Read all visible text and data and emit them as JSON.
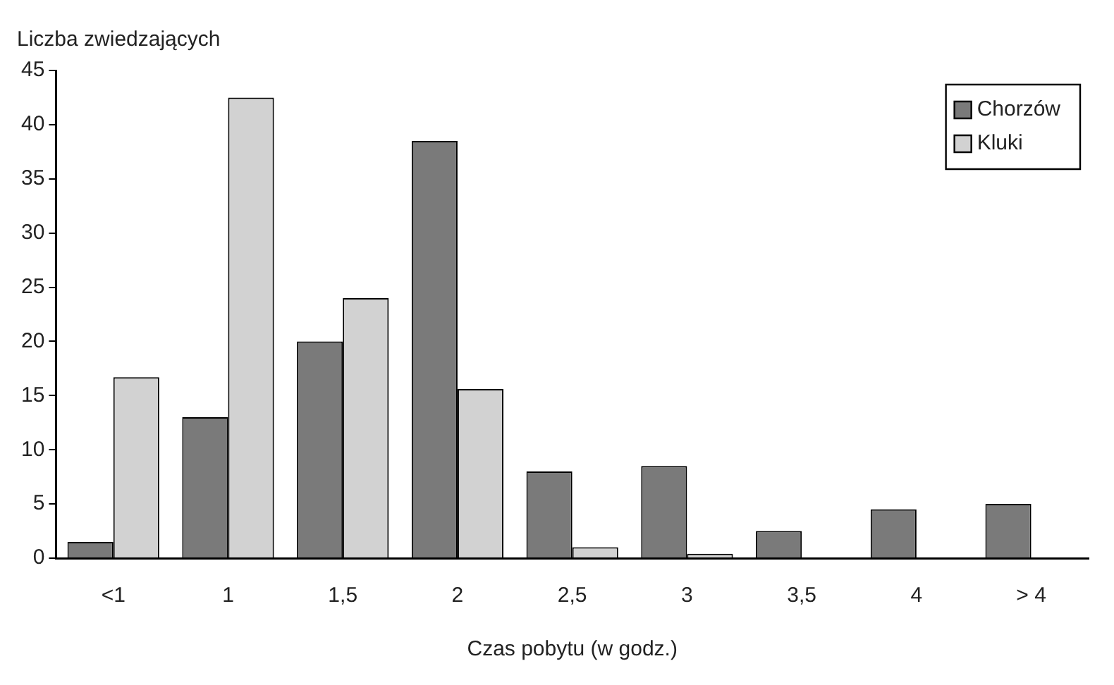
{
  "chart_data": {
    "type": "bar",
    "ylabel": "Liczba zwiedzających",
    "xlabel": "Czas pobytu (w godz.)",
    "categories": [
      "<1",
      "1",
      "1,5",
      "2",
      "2,5",
      "3",
      "3,5",
      "4",
      "> 4"
    ],
    "series": [
      {
        "name": "Chorzów",
        "color": "#7a7a7a",
        "values": [
          1.5,
          13,
          20,
          38.5,
          8,
          8.5,
          2.5,
          4.5,
          5
        ]
      },
      {
        "name": "Kluki",
        "color": "#d2d2d2",
        "values": [
          16.7,
          42.5,
          24,
          15.6,
          1,
          0.4,
          0,
          0,
          0
        ]
      }
    ],
    "ylim": [
      0,
      45
    ],
    "yticks": [
      0,
      5,
      10,
      15,
      20,
      25,
      30,
      35,
      40,
      45
    ],
    "grid": false,
    "legend": "top right"
  }
}
